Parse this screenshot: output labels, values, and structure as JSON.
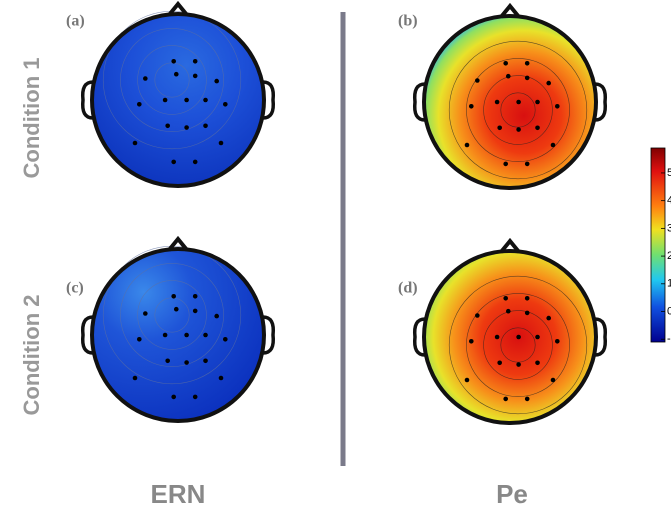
{
  "panels": [
    {
      "label": "(a)",
      "kind": "ern1"
    },
    {
      "label": "(b)",
      "kind": "pe1"
    },
    {
      "label": "(c)",
      "kind": "ern2"
    },
    {
      "label": "(d)",
      "kind": "pe2"
    }
  ],
  "row_labels": [
    "Condition 1",
    "Condition 2"
  ],
  "column_labels": [
    "ERN",
    "Pe"
  ],
  "colorbar": {
    "lim": [
      -1.1,
      5.9
    ],
    "ticks": [
      5,
      4,
      3,
      2,
      1,
      0,
      {
        "value": -1,
        "label": "-"
      }
    ]
  }
}
